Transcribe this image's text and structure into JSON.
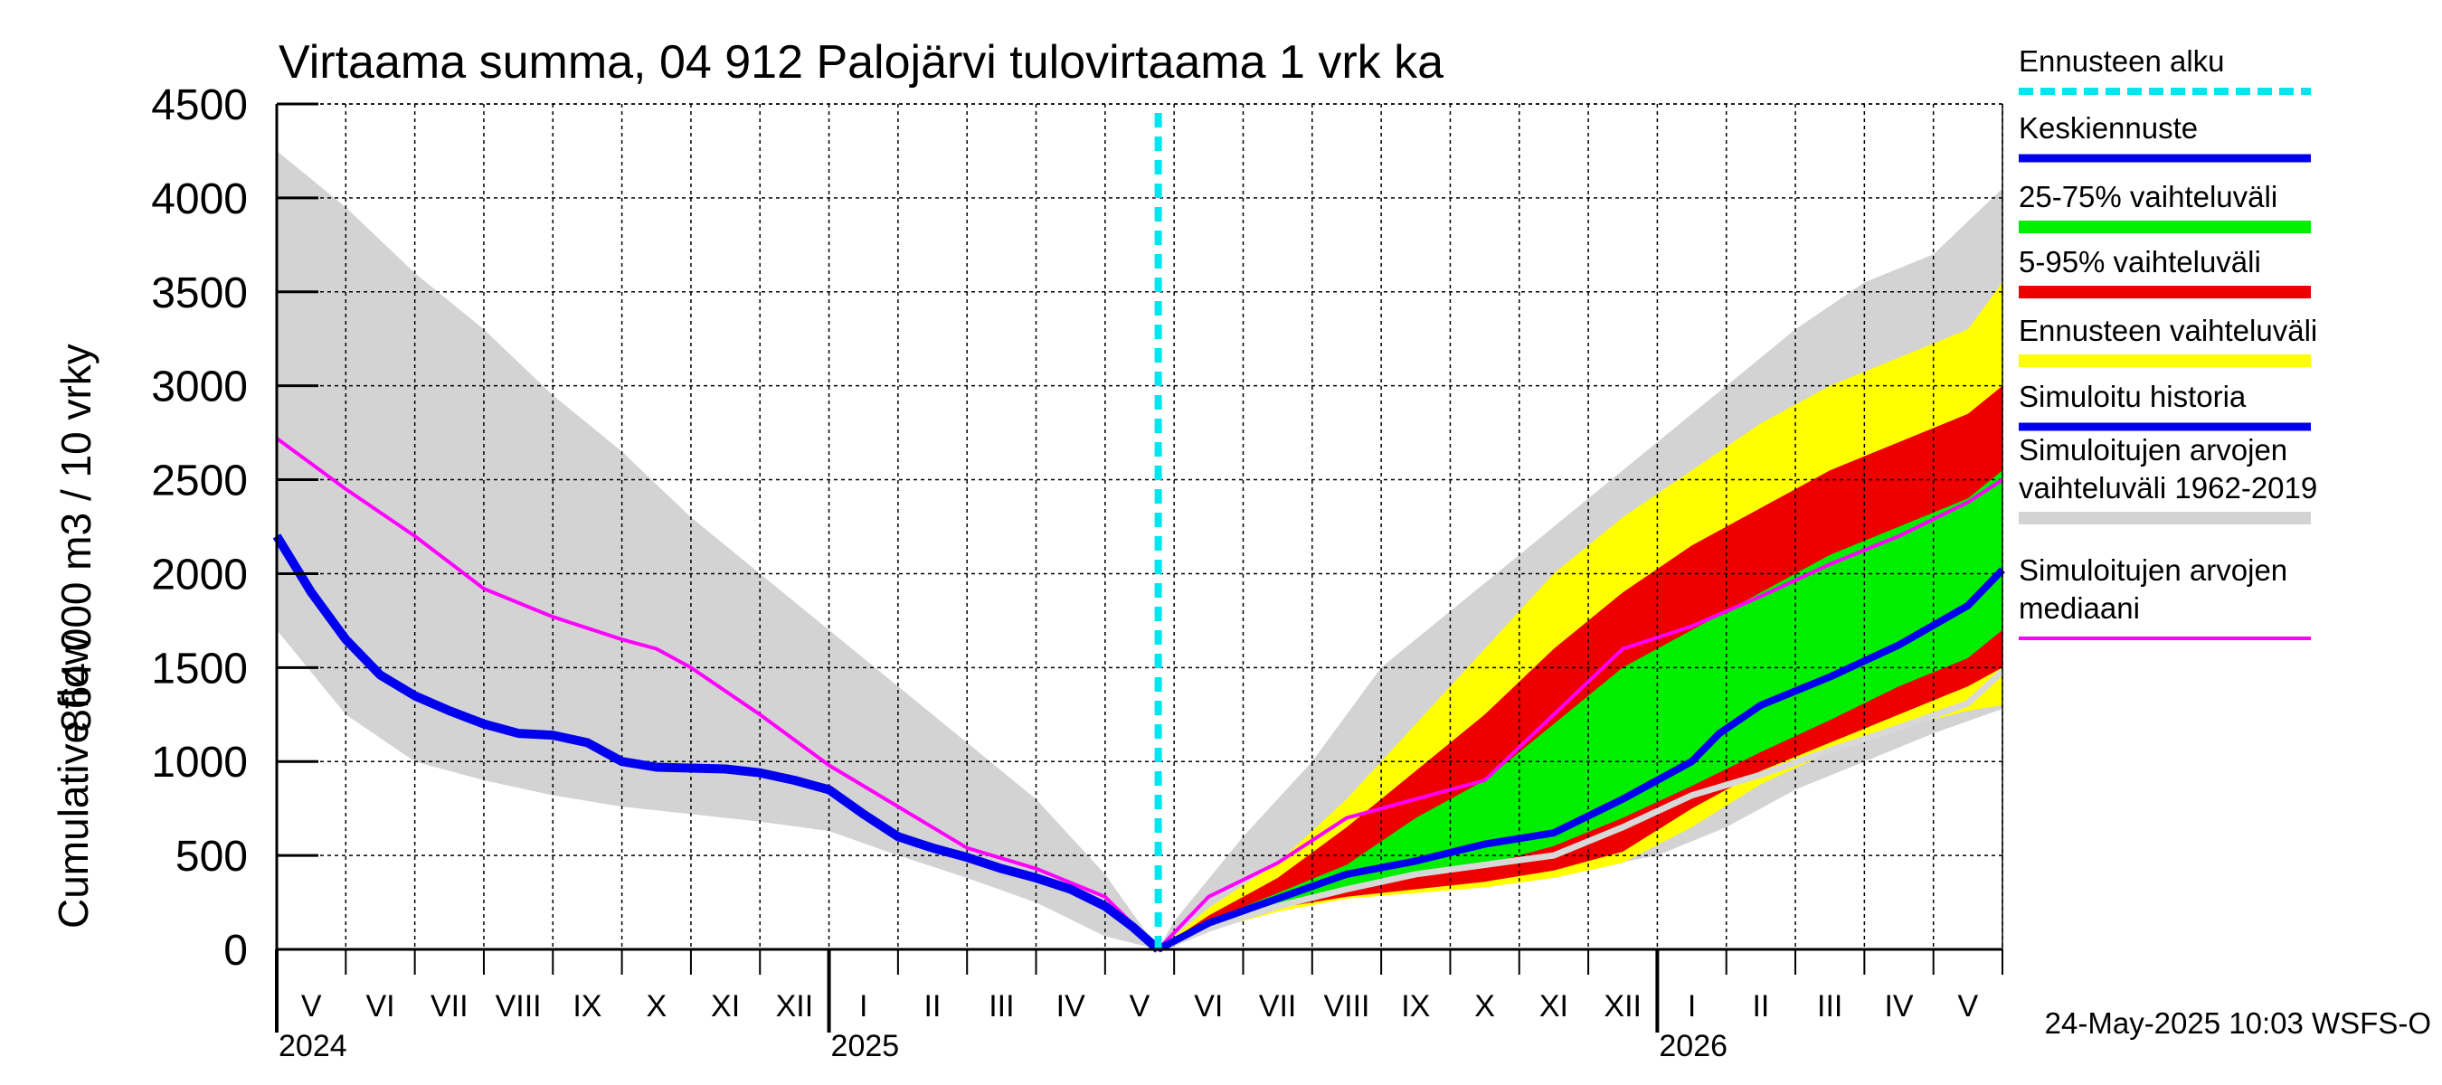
{
  "chart_data": {
    "type": "area",
    "title": "Virtaama summa, 04 912 Palojärvi tulovirtaama 1 vrk ka",
    "ylabel_line1": "864 000 m3 / 10 vrky",
    "ylabel_line2": "Cumulative flow",
    "ylim": [
      0,
      4500
    ],
    "yticks": [
      "0",
      "500",
      "1000",
      "1500",
      "2000",
      "2500",
      "3000",
      "3500",
      "4000",
      "4500"
    ],
    "x_unit": "months since 2024-05-01",
    "xlim": [
      0,
      25
    ],
    "months": [
      "V",
      "VI",
      "VII",
      "VIII",
      "IX",
      "X",
      "XI",
      "XII",
      "I",
      "II",
      "III",
      "IV",
      "V",
      "VI",
      "VII",
      "VIII",
      "IX",
      "X",
      "XI",
      "XII",
      "I",
      "II",
      "III",
      "IV",
      "V"
    ],
    "years": [
      {
        "label": "2024",
        "x": 0
      },
      {
        "label": "2025",
        "x": 8
      },
      {
        "label": "2026",
        "x": 20
      }
    ],
    "forecast_start": 12.77,
    "timestamp": "24-May-2025 10:03 WSFS-O",
    "colors": {
      "forecast_start": "#00e5ee",
      "mean": "#0000ee",
      "p25_75": "#00ee00",
      "p5_95": "#ee0000",
      "forecast_range": "#ffff00",
      "simulated": "#0000ee",
      "hist_range": "#d3d3d3",
      "hist_median": "#ff00ff",
      "hist_member": "#d8d8d8"
    },
    "legend": [
      {
        "key": "forecast_start",
        "label": "Ennusteen alku"
      },
      {
        "key": "mean",
        "label": "Keskiennuste"
      },
      {
        "key": "p25_75",
        "label": "25-75% vaihteluväli"
      },
      {
        "key": "p5_95",
        "label": "5-95% vaihteluväli"
      },
      {
        "key": "forecast_range",
        "label": "Ennusteen vaihteluväli"
      },
      {
        "key": "simulated",
        "label": "Simuloitu historia"
      },
      {
        "key": "hist_range",
        "label": "Simuloitujen arvojen\nvaihteluväli 1962-2019"
      },
      {
        "key": "hist_median",
        "label": "Simuloitujen arvojen\nmediaani"
      }
    ],
    "series": {
      "hist_range_upper": [
        [
          0,
          4250
        ],
        [
          1,
          3950
        ],
        [
          2,
          3600
        ],
        [
          3,
          3300
        ],
        [
          4,
          2950
        ],
        [
          5,
          2650
        ],
        [
          6,
          2300
        ],
        [
          7,
          2000
        ],
        [
          8,
          1700
        ],
        [
          9,
          1400
        ],
        [
          10,
          1100
        ],
        [
          11,
          800
        ],
        [
          12,
          400
        ],
        [
          12.77,
          0
        ],
        [
          13,
          150
        ],
        [
          14,
          600
        ],
        [
          15,
          1000
        ],
        [
          16,
          1500
        ],
        [
          17,
          1800
        ],
        [
          18,
          2100
        ],
        [
          19,
          2400
        ],
        [
          20,
          2700
        ],
        [
          21,
          3000
        ],
        [
          22,
          3300
        ],
        [
          23,
          3550
        ],
        [
          24,
          3700
        ],
        [
          25,
          4050
        ]
      ],
      "hist_range_lower": [
        [
          0,
          1700
        ],
        [
          1,
          1250
        ],
        [
          2,
          1000
        ],
        [
          3,
          900
        ],
        [
          4,
          820
        ],
        [
          5,
          760
        ],
        [
          6,
          720
        ],
        [
          7,
          680
        ],
        [
          8,
          630
        ],
        [
          9,
          500
        ],
        [
          10,
          380
        ],
        [
          11,
          250
        ],
        [
          12,
          70
        ],
        [
          12.77,
          0
        ],
        [
          13,
          60
        ],
        [
          14,
          200
        ],
        [
          15,
          300
        ],
        [
          16,
          340
        ],
        [
          17,
          370
        ],
        [
          18,
          390
        ],
        [
          19,
          430
        ],
        [
          20,
          500
        ],
        [
          21,
          650
        ],
        [
          22,
          850
        ],
        [
          23,
          1000
        ],
        [
          24,
          1150
        ],
        [
          25,
          1280
        ]
      ],
      "forecast_max": [
        [
          12.77,
          0
        ],
        [
          13.5,
          220
        ],
        [
          14.5,
          460
        ],
        [
          15.5,
          800
        ],
        [
          16.5,
          1200
        ],
        [
          17.5,
          1600
        ],
        [
          18.5,
          2000
        ],
        [
          19.5,
          2300
        ],
        [
          20.5,
          2550
        ],
        [
          21.5,
          2800
        ],
        [
          22.5,
          3000
        ],
        [
          23.5,
          3150
        ],
        [
          24.5,
          3300
        ],
        [
          25,
          3550
        ]
      ],
      "p95": [
        [
          12.77,
          0
        ],
        [
          13.5,
          180
        ],
        [
          14.5,
          380
        ],
        [
          15.5,
          650
        ],
        [
          16.5,
          950
        ],
        [
          17.5,
          1250
        ],
        [
          18.5,
          1600
        ],
        [
          19.5,
          1900
        ],
        [
          20.5,
          2150
        ],
        [
          21.5,
          2350
        ],
        [
          22.5,
          2550
        ],
        [
          23.5,
          2700
        ],
        [
          24.5,
          2850
        ],
        [
          25,
          3000
        ]
      ],
      "p75": [
        [
          12.77,
          0
        ],
        [
          13.5,
          150
        ],
        [
          14.5,
          300
        ],
        [
          15.5,
          450
        ],
        [
          16.5,
          700
        ],
        [
          17.5,
          900
        ],
        [
          18.5,
          1200
        ],
        [
          19.5,
          1500
        ],
        [
          20.5,
          1700
        ],
        [
          21.5,
          1900
        ],
        [
          22.5,
          2100
        ],
        [
          23.5,
          2250
        ],
        [
          24.5,
          2400
        ],
        [
          25,
          2550
        ]
      ],
      "p25": [
        [
          12.77,
          0
        ],
        [
          13.5,
          120
        ],
        [
          14.5,
          230
        ],
        [
          15.5,
          320
        ],
        [
          16.5,
          400
        ],
        [
          17.5,
          450
        ],
        [
          18.5,
          550
        ],
        [
          19.5,
          700
        ],
        [
          20.5,
          870
        ],
        [
          21.5,
          1050
        ],
        [
          22.5,
          1220
        ],
        [
          23.5,
          1400
        ],
        [
          24.5,
          1550
        ],
        [
          25,
          1700
        ]
      ],
      "p5": [
        [
          12.77,
          0
        ],
        [
          13.5,
          110
        ],
        [
          14.5,
          220
        ],
        [
          15.5,
          280
        ],
        [
          16.5,
          320
        ],
        [
          17.5,
          360
        ],
        [
          18.5,
          420
        ],
        [
          19.5,
          520
        ],
        [
          20.5,
          750
        ],
        [
          21.5,
          950
        ],
        [
          22.5,
          1100
        ],
        [
          23.5,
          1250
        ],
        [
          24.5,
          1400
        ],
        [
          25,
          1500
        ]
      ],
      "forecast_min": [
        [
          12.77,
          0
        ],
        [
          13.5,
          100
        ],
        [
          14.5,
          200
        ],
        [
          15.5,
          270
        ],
        [
          16.5,
          300
        ],
        [
          17.5,
          330
        ],
        [
          18.5,
          380
        ],
        [
          19.5,
          460
        ],
        [
          20.5,
          650
        ],
        [
          21.5,
          880
        ],
        [
          22.5,
          1050
        ],
        [
          23.5,
          1180
        ],
        [
          24.5,
          1270
        ],
        [
          25,
          1300
        ]
      ],
      "mean": [
        [
          12.77,
          0
        ],
        [
          13.5,
          140
        ],
        [
          14.5,
          270
        ],
        [
          15.5,
          400
        ],
        [
          16.5,
          470
        ],
        [
          17.5,
          560
        ],
        [
          18.5,
          620
        ],
        [
          19.5,
          800
        ],
        [
          20.5,
          1000
        ],
        [
          20.9,
          1150
        ],
        [
          21.5,
          1300
        ],
        [
          22.5,
          1450
        ],
        [
          23.5,
          1620
        ],
        [
          24.5,
          1830
        ],
        [
          25,
          2020
        ]
      ],
      "simulated": [
        [
          0,
          2200
        ],
        [
          0.5,
          1900
        ],
        [
          1,
          1650
        ],
        [
          1.5,
          1460
        ],
        [
          2,
          1350
        ],
        [
          2.5,
          1270
        ],
        [
          3,
          1200
        ],
        [
          3.5,
          1150
        ],
        [
          4,
          1140
        ],
        [
          4.5,
          1100
        ],
        [
          5,
          1000
        ],
        [
          5.5,
          970
        ],
        [
          6,
          965
        ],
        [
          6.5,
          960
        ],
        [
          7,
          940
        ],
        [
          7.5,
          900
        ],
        [
          8,
          850
        ],
        [
          8.5,
          720
        ],
        [
          9,
          600
        ],
        [
          9.5,
          540
        ],
        [
          10,
          490
        ],
        [
          10.5,
          430
        ],
        [
          11,
          380
        ],
        [
          11.5,
          320
        ],
        [
          12,
          230
        ],
        [
          12.4,
          120
        ],
        [
          12.77,
          0
        ]
      ],
      "hist_median": [
        [
          0,
          2720
        ],
        [
          1,
          2450
        ],
        [
          2,
          2200
        ],
        [
          3,
          1920
        ],
        [
          4,
          1770
        ],
        [
          5,
          1650
        ],
        [
          5.5,
          1600
        ],
        [
          6,
          1500
        ],
        [
          7,
          1250
        ],
        [
          8,
          980
        ],
        [
          9,
          760
        ],
        [
          10,
          540
        ],
        [
          11,
          430
        ],
        [
          12,
          280
        ],
        [
          12.77,
          0
        ],
        [
          13.5,
          280
        ],
        [
          14.5,
          460
        ],
        [
          15.5,
          700
        ],
        [
          16.5,
          800
        ],
        [
          17.5,
          900
        ],
        [
          18.5,
          1250
        ],
        [
          19.5,
          1600
        ],
        [
          20.5,
          1720
        ],
        [
          21.5,
          1880
        ],
        [
          22.5,
          2050
        ],
        [
          23.5,
          2200
        ],
        [
          24.5,
          2380
        ],
        [
          25,
          2500
        ]
      ],
      "hist_member": [
        [
          12.77,
          0
        ],
        [
          13.5,
          110
        ],
        [
          14.5,
          230
        ],
        [
          15.5,
          320
        ],
        [
          16.5,
          400
        ],
        [
          17.5,
          450
        ],
        [
          18.5,
          500
        ],
        [
          19.5,
          650
        ],
        [
          20.5,
          820
        ],
        [
          21.5,
          930
        ],
        [
          22.5,
          1060
        ],
        [
          23.5,
          1180
        ],
        [
          24.5,
          1310
        ],
        [
          25,
          1480
        ]
      ]
    }
  }
}
